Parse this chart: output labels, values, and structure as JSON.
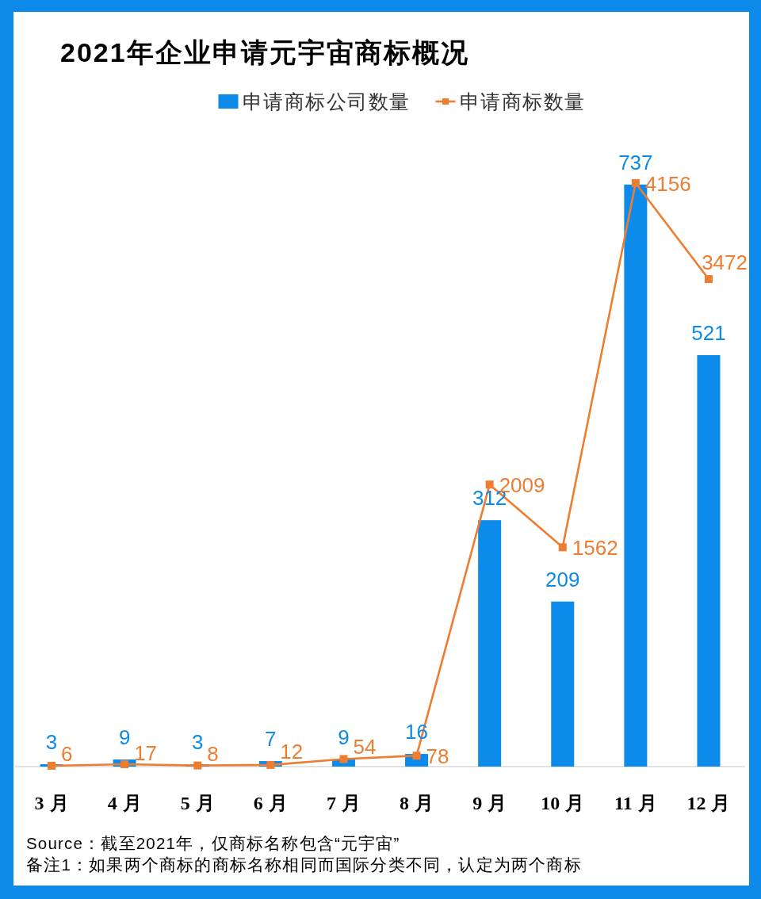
{
  "chart_data": {
    "type": "bar",
    "title": "2021年企业申请元宇宙商标概况",
    "categories": [
      "3月",
      "4月",
      "5月",
      "6月",
      "7月",
      "8月",
      "9月",
      "10月",
      "11月",
      "12月"
    ],
    "series": [
      {
        "name": "申请商标公司数量",
        "color": "#0d8bea",
        "values": [
          3,
          9,
          3,
          7,
          9,
          16,
          312,
          209,
          737,
          521
        ]
      },
      {
        "name": "申请商标数量",
        "type": "line",
        "axis": "y2",
        "color": "#ee7d31",
        "values": [
          6,
          17,
          8,
          12,
          54,
          78,
          2009,
          1562,
          4156,
          3472
        ]
      }
    ],
    "tick_labels": "x",
    "data_labels": true,
    "legend": "top",
    "marker": "square",
    "line_style": "solid",
    "annotations": [
      "Source：截至2021年，仅商标名称包含“元宇宙”",
      "备注1：如果两个商标的商标名称相同而国际分类不同，认定为两个商标"
    ]
  }
}
